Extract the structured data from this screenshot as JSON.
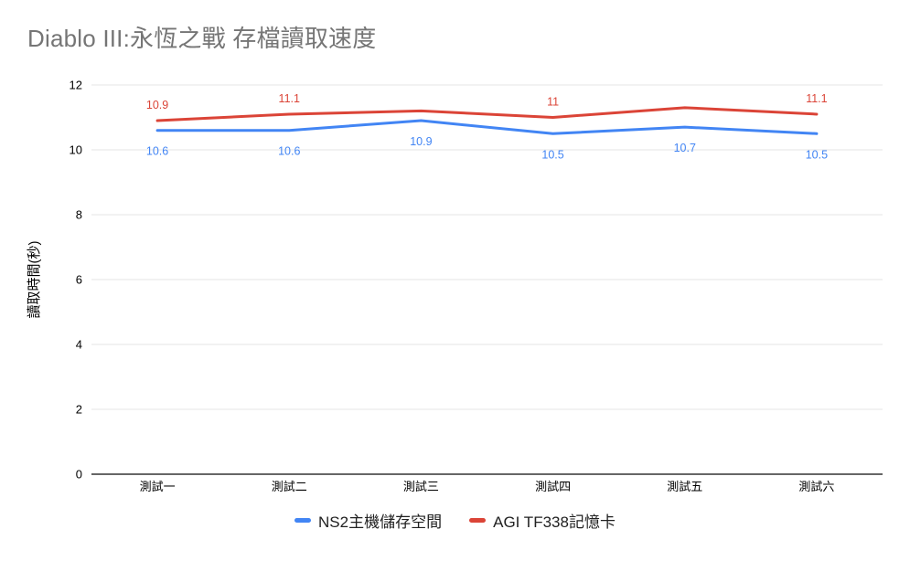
{
  "title": "Diablo III:永恆之戰 存檔讀取速度",
  "chart_data": {
    "type": "line",
    "title": "Diablo III:永恆之戰 存檔讀取速度",
    "xlabel": "",
    "ylabel": "讀取時間(秒)",
    "categories": [
      "測試一",
      "測試二",
      "測試三",
      "測試四",
      "測試五",
      "測試六"
    ],
    "series": [
      {
        "name": "NS2主機儲存空間",
        "color": "#4285F4",
        "values": [
          10.6,
          10.6,
          10.9,
          10.5,
          10.7,
          10.5
        ],
        "labels": [
          "10.6",
          "10.6",
          "10.9",
          "10.5",
          "10.7",
          "10.5"
        ],
        "label_position": "below"
      },
      {
        "name": "AGI TF338記憶卡",
        "color": "#DB4437",
        "values": [
          10.9,
          11.1,
          11.2,
          11.0,
          11.3,
          11.1
        ],
        "labels": [
          "10.9",
          "11.1",
          null,
          "11",
          null,
          "11.1"
        ],
        "label_position": "above"
      }
    ],
    "ylim": [
      0,
      12
    ],
    "yticks": [
      0,
      2,
      4,
      6,
      8,
      10,
      12
    ],
    "grid": "horizontal",
    "legend_position": "bottom"
  }
}
